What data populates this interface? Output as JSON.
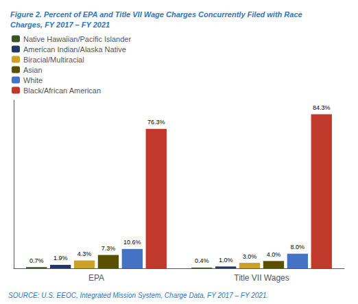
{
  "chart_data": {
    "type": "bar",
    "title": "Figure 2. Percent of EPA and Title VII Wage Charges Concurrently Filed with Race\nCharges, FY 2017 – FY 2021",
    "source": "SOURCE: U.S. EEOC, Integrated Mission System, Charge Data, FY 2017 – FY 2021.",
    "categories": [
      "EPA",
      "Title VII Wages"
    ],
    "series": [
      {
        "name": "Native Hawaiian/Pacific Islander",
        "color": "#375623",
        "values": [
          0.7,
          0.4
        ],
        "value_labels": [
          "0.7%",
          "0.4%"
        ]
      },
      {
        "name": "American Indian/Alaska Native",
        "color": "#1F3864",
        "values": [
          1.9,
          1.0
        ],
        "value_labels": [
          "1.9%",
          "1.0%"
        ]
      },
      {
        "name": "Biracial/Multiracial",
        "color": "#C9A227",
        "values": [
          4.3,
          3.0
        ],
        "value_labels": [
          "4.3%",
          "3.0%"
        ]
      },
      {
        "name": "Asian",
        "color": "#595100",
        "values": [
          7.3,
          4.0
        ],
        "value_labels": [
          "7.3%",
          "4.0%"
        ]
      },
      {
        "name": "White",
        "color": "#4472C4",
        "values": [
          10.6,
          8.0
        ],
        "value_labels": [
          "10.6%",
          "8.0%"
        ]
      },
      {
        "name": "Black/African American",
        "color": "#C0392B",
        "values": [
          76.3,
          84.3
        ],
        "value_labels": [
          "76.3%",
          "84.3%"
        ]
      }
    ],
    "ylim": [
      0,
      92
    ],
    "tick_labels": "x",
    "grid": false,
    "legend": "upper left",
    "data_labels": true
  }
}
